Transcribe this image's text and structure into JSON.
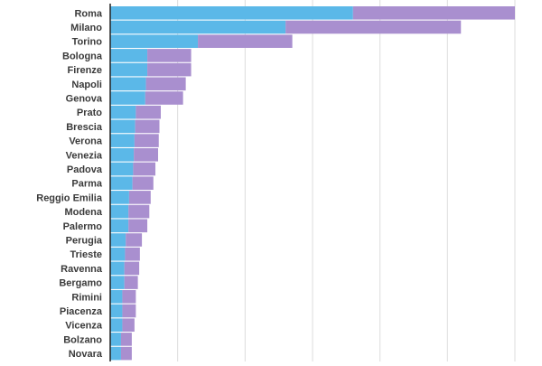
{
  "chart_data": {
    "type": "bar",
    "orientation": "horizontal",
    "stacked": true,
    "categories": [
      "Roma",
      "Milano",
      "Torino",
      "Bologna",
      "Firenze",
      "Napoli",
      "Genova",
      "Prato",
      "Brescia",
      "Verona",
      "Venezia",
      "Padova",
      "Parma",
      "Reggio Emilia",
      "Modena",
      "Palermo",
      "Perugia",
      "Trieste",
      "Ravenna",
      "Bergamo",
      "Rimini",
      "Piacenza",
      "Vicenza",
      "Bolzano",
      "Novara"
    ],
    "series": [
      {
        "color": "#5bb8e8",
        "values": [
          36,
          26,
          13,
          5.5,
          5.5,
          5.3,
          5.2,
          3.8,
          3.7,
          3.6,
          3.5,
          3.4,
          3.3,
          2.8,
          2.7,
          2.7,
          2.3,
          2.2,
          2.1,
          2.1,
          1.8,
          1.8,
          1.8,
          1.6,
          1.6
        ]
      },
      {
        "color": "#a98fcf",
        "values": [
          24,
          26,
          14,
          6.5,
          6.5,
          5.9,
          5.6,
          3.7,
          3.6,
          3.6,
          3.6,
          3.3,
          3.1,
          3.2,
          3.1,
          2.8,
          2.4,
          2.2,
          2.2,
          2.0,
          2.0,
          2.0,
          1.8,
          1.6,
          1.6
        ]
      }
    ],
    "xlim": [
      0,
      60
    ],
    "grid": true,
    "gridlines": [
      10,
      20,
      30,
      40,
      50,
      60
    ],
    "colors": {
      "label": "#3a3a3a",
      "axis": "#222222",
      "grid": "#dcdcdc"
    }
  }
}
